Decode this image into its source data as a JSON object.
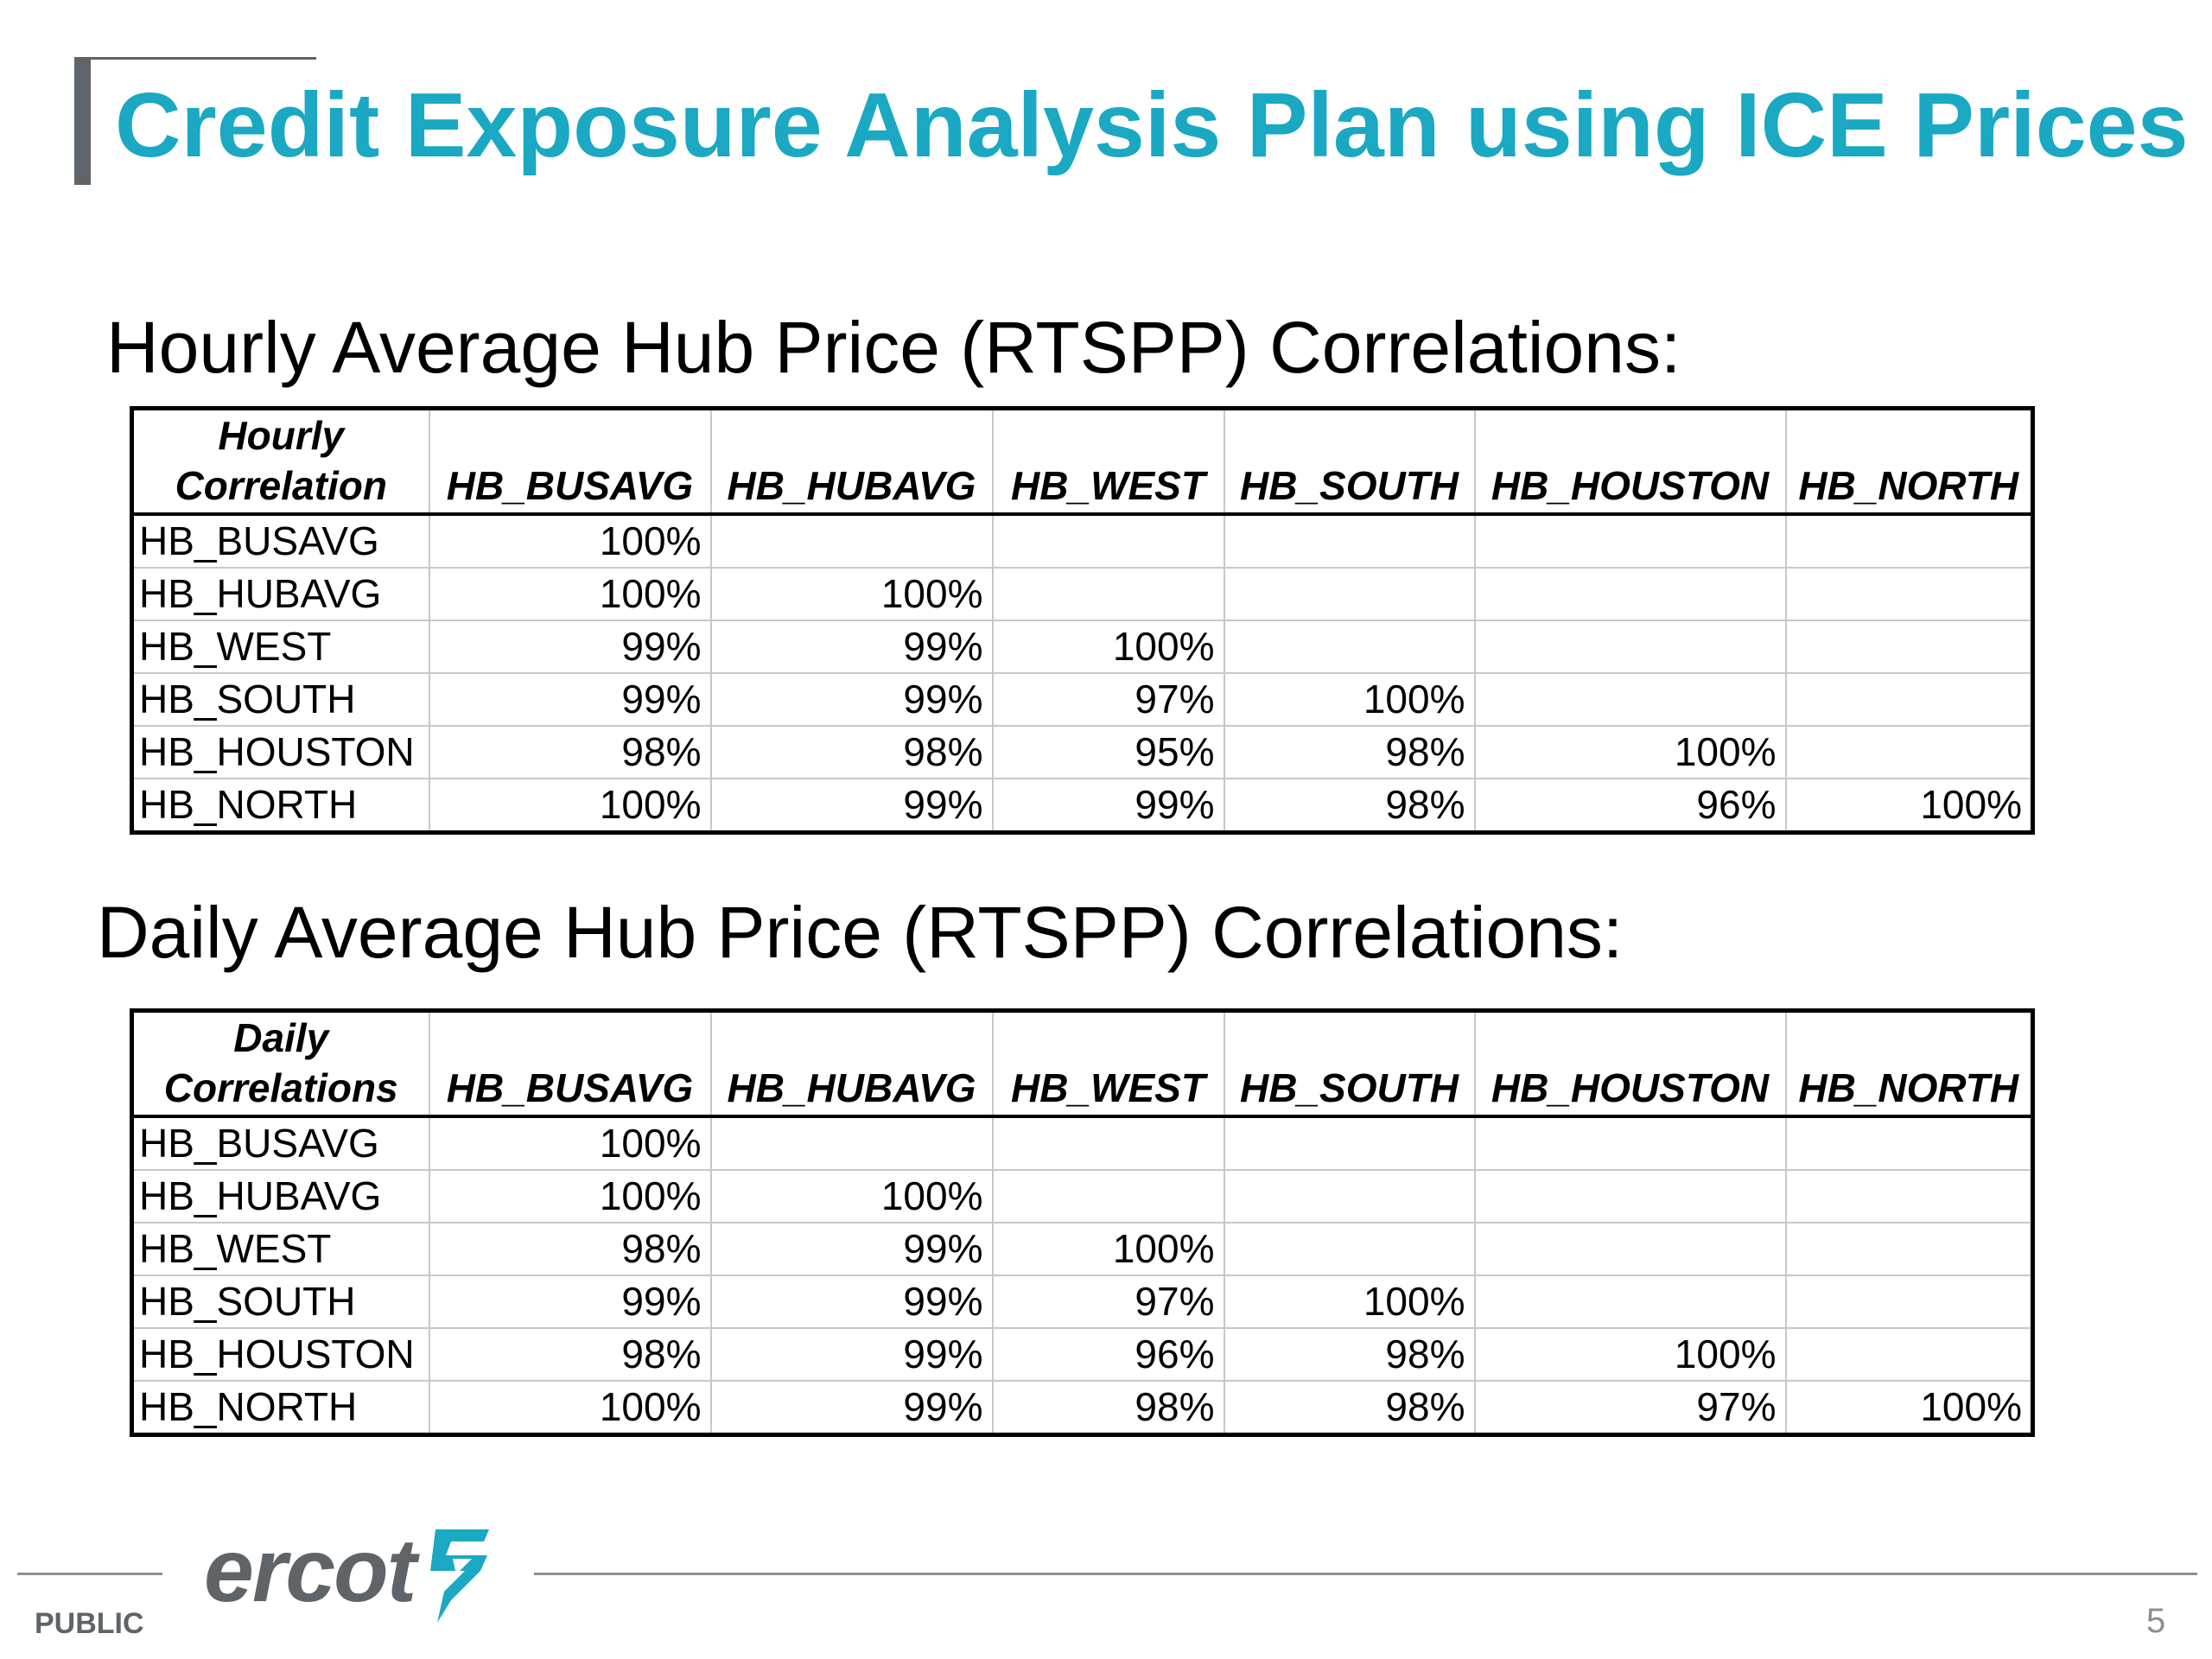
{
  "title": "Credit Exposure Analysis Plan using ICE Prices",
  "hourly": {
    "heading": "Hourly Average Hub Price (RTSPP) Correlations:",
    "corner_line1": "Hourly",
    "corner_line2": "Correlation",
    "columns": [
      "HB_BUSAVG",
      "HB_HUBAVG",
      "HB_WEST",
      "HB_SOUTH",
      "HB_HOUSTON",
      "HB_NORTH"
    ],
    "rows": [
      {
        "label": "HB_BUSAVG",
        "values": [
          "100%",
          "",
          "",
          "",
          "",
          ""
        ]
      },
      {
        "label": "HB_HUBAVG",
        "values": [
          "100%",
          "100%",
          "",
          "",
          "",
          ""
        ]
      },
      {
        "label": "HB_WEST",
        "values": [
          "99%",
          "99%",
          "100%",
          "",
          "",
          ""
        ]
      },
      {
        "label": "HB_SOUTH",
        "values": [
          "99%",
          "99%",
          "97%",
          "100%",
          "",
          ""
        ]
      },
      {
        "label": "HB_HOUSTON",
        "values": [
          "98%",
          "98%",
          "95%",
          "98%",
          "100%",
          ""
        ]
      },
      {
        "label": "HB_NORTH",
        "values": [
          "100%",
          "99%",
          "99%",
          "98%",
          "96%",
          "100%"
        ]
      }
    ]
  },
  "daily": {
    "heading": "Daily Average Hub Price (RTSPP) Correlations:",
    "corner_line1": "Daily",
    "corner_line2": "Correlations",
    "columns": [
      "HB_BUSAVG",
      "HB_HUBAVG",
      "HB_WEST",
      "HB_SOUTH",
      "HB_HOUSTON",
      "HB_NORTH"
    ],
    "rows": [
      {
        "label": "HB_BUSAVG",
        "values": [
          "100%",
          "",
          "",
          "",
          "",
          ""
        ]
      },
      {
        "label": "HB_HUBAVG",
        "values": [
          "100%",
          "100%",
          "",
          "",
          "",
          ""
        ]
      },
      {
        "label": "HB_WEST",
        "values": [
          "98%",
          "99%",
          "100%",
          "",
          "",
          ""
        ]
      },
      {
        "label": "HB_SOUTH",
        "values": [
          "99%",
          "99%",
          "97%",
          "100%",
          "",
          ""
        ]
      },
      {
        "label": "HB_HOUSTON",
        "values": [
          "98%",
          "99%",
          "96%",
          "98%",
          "100%",
          ""
        ]
      },
      {
        "label": "HB_NORTH",
        "values": [
          "100%",
          "99%",
          "98%",
          "98%",
          "97%",
          "100%"
        ]
      }
    ]
  },
  "footer": {
    "logo_text": "ercot",
    "logo_icon": "ercot-star-icon",
    "classification": "PUBLIC",
    "page_number": "5"
  },
  "colors": {
    "title": "#1aa8c3",
    "accent_bar": "#5f6468",
    "logo": "#5f6468",
    "logo_mark": "#1aa8c3"
  }
}
